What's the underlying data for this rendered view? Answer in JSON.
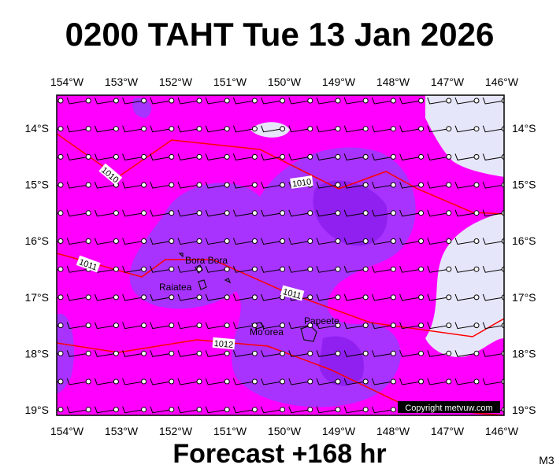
{
  "title": "0200 TAHT Tue 13 Jan 2026",
  "footer": "Forecast +168 hr",
  "code": "M3",
  "copyright": "Copyright metvuw.com",
  "longitude_labels": [
    "154°W",
    "153°W",
    "152°W",
    "151°W",
    "150°W",
    "149°W",
    "148°W",
    "147°W",
    "146°W"
  ],
  "latitude_labels": [
    "14°S",
    "15°S",
    "16°S",
    "17°S",
    "18°S",
    "19°S"
  ],
  "places": [
    "Bora Bora",
    "Raiatea",
    "Mo'orea",
    "Papeete"
  ],
  "isobar_labels": [
    "1010",
    "1010",
    "1011",
    "1011",
    "1012"
  ]
}
